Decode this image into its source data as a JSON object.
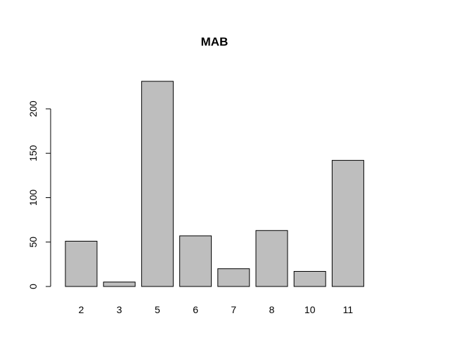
{
  "chart_data": {
    "type": "bar",
    "title": "MAB",
    "xlabel": "",
    "ylabel": "",
    "categories": [
      "2",
      "3",
      "5",
      "6",
      "7",
      "8",
      "10",
      "11"
    ],
    "values": [
      51,
      5,
      231,
      57,
      20,
      63,
      17,
      142
    ],
    "ylim": [
      0,
      240
    ],
    "yticks": [
      0,
      50,
      100,
      150,
      200
    ],
    "grid": false,
    "bar_color": "#bebebe",
    "bar_edge_color": "#000000"
  }
}
